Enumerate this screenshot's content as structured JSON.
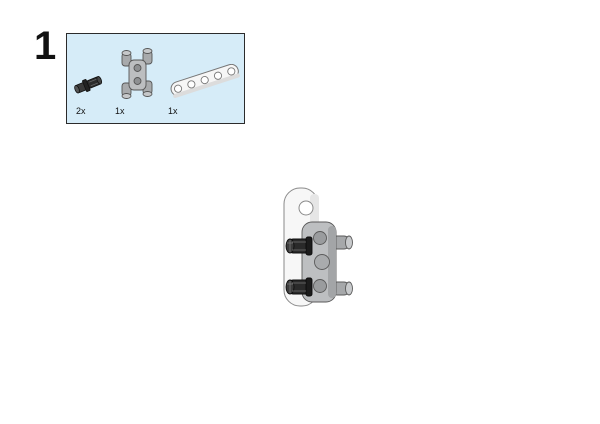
{
  "step": {
    "number": "1"
  },
  "parts_list": {
    "items": [
      {
        "part": "black-axle-pin-connector",
        "quantity": "2x"
      },
      {
        "part": "gray-double-cross-block",
        "quantity": "1x"
      },
      {
        "part": "white-5-hole-beam",
        "quantity": "1x"
      }
    ]
  },
  "colors": {
    "parts_box_background": "#d6ecf8",
    "parts_box_border": "#2b2b2b",
    "beam_white": "#f4f4f4",
    "connector_gray": "#b4b6b8",
    "pin_black": "#1e1e1e"
  }
}
